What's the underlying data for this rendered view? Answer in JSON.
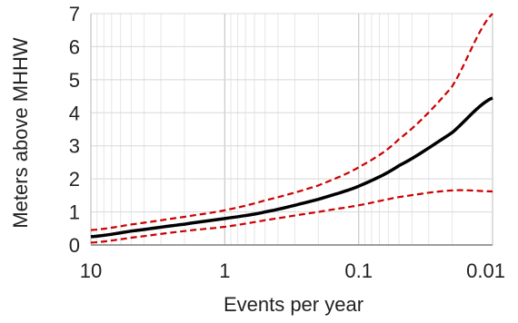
{
  "chart_data": {
    "type": "line",
    "title": "",
    "xlabel": "Events per year",
    "ylabel": "Meters above MHHW",
    "x_scale": "log",
    "x_reversed": true,
    "xlim": [
      10,
      0.01
    ],
    "ylim": [
      0,
      7
    ],
    "x_ticks": [
      10,
      1,
      0.1,
      0.01
    ],
    "x_tick_labels": [
      "10",
      "1",
      "0.1",
      "0.01"
    ],
    "y_ticks": [
      0,
      1,
      2,
      3,
      4,
      5,
      6,
      7
    ],
    "y_tick_labels": [
      "0",
      "1",
      "2",
      "3",
      "4",
      "5",
      "6",
      "7"
    ],
    "grid": true,
    "legend": "none",
    "series": [
      {
        "style": "solid",
        "color": "#000000",
        "x": [
          10,
          5,
          2,
          1,
          0.5,
          0.2,
          0.1,
          0.05,
          0.02,
          0.01
        ],
        "y": [
          0.25,
          0.42,
          0.63,
          0.8,
          1.0,
          1.38,
          1.78,
          2.4,
          3.4,
          4.45
        ]
      },
      {
        "style": "dashed",
        "color": "#cc0000",
        "x": [
          10,
          5,
          2,
          1,
          0.5,
          0.2,
          0.1,
          0.05,
          0.02,
          0.01
        ],
        "y": [
          0.45,
          0.62,
          0.85,
          1.05,
          1.35,
          1.8,
          2.35,
          3.2,
          4.8,
          7.0
        ]
      },
      {
        "style": "dashed",
        "color": "#cc0000",
        "x": [
          10,
          5,
          2,
          1,
          0.5,
          0.2,
          0.1,
          0.05,
          0.02,
          0.01
        ],
        "y": [
          0.07,
          0.22,
          0.42,
          0.55,
          0.75,
          1.0,
          1.2,
          1.45,
          1.65,
          1.62
        ]
      }
    ]
  }
}
